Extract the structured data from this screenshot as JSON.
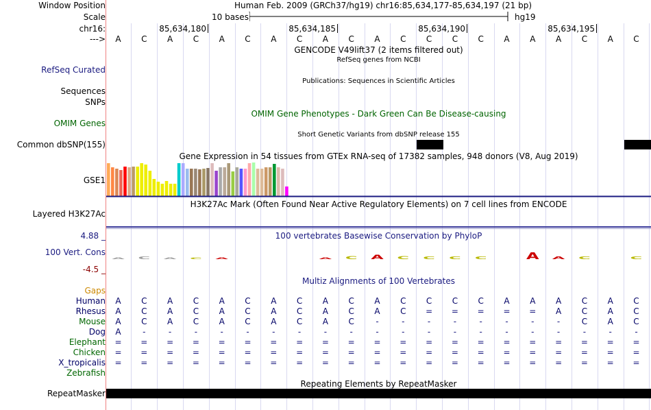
{
  "labels": {
    "window_position": "Window Position",
    "scale": "Scale",
    "chrom": "chr16:",
    "arrow": "--->",
    "refseq": "RefSeq Curated",
    "sequences": "Sequences",
    "snps": "SNPs",
    "omim": "OMIM Genes",
    "dbsnp": "Common dbSNP(155)",
    "gse1": "GSE1",
    "h3k27ac": "Layered H3K27Ac",
    "vert_cons": "100 Vert. Cons",
    "cons_max": "4.88 _",
    "cons_min": "-4.5 _",
    "gaps": "Gaps",
    "repeatmasker": "RepeatMasker"
  },
  "ruler": {
    "window_text": "Human Feb. 2009 (GRCh37/hg19)   chr16:85,634,177-85,634,197 (21 bp)",
    "scale_text": "10 bases",
    "assembly": "hg19",
    "positions": [
      "85,634,180",
      "85,634,185",
      "85,634,190",
      "85,634,195"
    ]
  },
  "reference_bases": [
    "A",
    "C",
    "A",
    "C",
    "A",
    "C",
    "A",
    "C",
    "A",
    "C",
    "A",
    "C",
    "C",
    "C",
    "C",
    "A",
    "A",
    "A",
    "C",
    "A",
    "C"
  ],
  "tracks": {
    "gencode": "GENCODE V49lift37 (2 items filtered out)",
    "refseq": "RefSeq genes from NCBI",
    "publications": "Publications: Sequences in Scientific Articles",
    "omim": "OMIM Gene Phenotypes - Dark Green Can Be Disease-causing",
    "dbsnp": "Short Genetic Variants from dbSNP release 155",
    "gtex": "Gene Expression in 54 tissues from GTEx RNA-seq of 17382 samples, 948 donors (V8, Aug 2019)",
    "h3k27ac": "H3K27Ac Mark (Often Found Near Active Regulatory Elements) on 7 cell lines from ENCODE",
    "phylop": "100 vertebrates Basewise Conservation by PhyloP",
    "multiz": "Multiz Alignments of 100 Vertebrates",
    "rmsk": "Repeating Elements by RepeatMasker"
  },
  "gtex_bars": [
    {
      "h": 0.96,
      "c": "#ffaa55"
    },
    {
      "h": 0.84,
      "c": "#ff8844"
    },
    {
      "h": 0.8,
      "c": "#dd8855"
    },
    {
      "h": 0.76,
      "c": "#ee6655"
    },
    {
      "h": 0.86,
      "c": "#ff0000"
    },
    {
      "h": 0.84,
      "c": "#ddaa88"
    },
    {
      "h": 0.86,
      "c": "#bb9966"
    },
    {
      "h": 0.86,
      "c": "#eeee00"
    },
    {
      "h": 0.96,
      "c": "#eeee00"
    },
    {
      "h": 0.92,
      "c": "#eeee00"
    },
    {
      "h": 0.74,
      "c": "#eeee00"
    },
    {
      "h": 0.5,
      "c": "#eeee00"
    },
    {
      "h": 0.42,
      "c": "#eeee00"
    },
    {
      "h": 0.36,
      "c": "#eeee00"
    },
    {
      "h": 0.44,
      "c": "#eeee00"
    },
    {
      "h": 0.36,
      "c": "#eeee00"
    },
    {
      "h": 0.36,
      "c": "#eeee00"
    },
    {
      "h": 0.96,
      "c": "#00cccc"
    },
    {
      "h": 0.96,
      "c": "#aaaaff"
    },
    {
      "h": 0.8,
      "c": "#99bbee"
    },
    {
      "h": 0.8,
      "c": "#997755"
    },
    {
      "h": 0.8,
      "c": "#998877"
    },
    {
      "h": 0.78,
      "c": "#997755"
    },
    {
      "h": 0.8,
      "c": "#aa9966"
    },
    {
      "h": 0.82,
      "c": "#887766"
    },
    {
      "h": 0.96,
      "c": "#ddbbbb"
    },
    {
      "h": 0.74,
      "c": "#9944cc"
    },
    {
      "h": 0.84,
      "c": "#aaaaaa"
    },
    {
      "h": 0.84,
      "c": "#bbaa99"
    },
    {
      "h": 0.96,
      "c": "#aa9977"
    },
    {
      "h": 0.72,
      "c": "#99cc44"
    },
    {
      "h": 0.84,
      "c": "#aaaa99"
    },
    {
      "h": 0.8,
      "c": "#5555ff"
    },
    {
      "h": 0.8,
      "c": "#ff99cc"
    },
    {
      "h": 0.96,
      "c": "#ffaaaa"
    },
    {
      "h": 0.98,
      "c": "#aaffaa"
    },
    {
      "h": 0.8,
      "c": "#ddbb99"
    },
    {
      "h": 0.8,
      "c": "#ddbb99"
    },
    {
      "h": 0.84,
      "c": "#cc9966"
    },
    {
      "h": 0.84,
      "c": "#bb9966"
    },
    {
      "h": 0.94,
      "c": "#009933"
    },
    {
      "h": 0.84,
      "c": "#ddbbaa"
    },
    {
      "h": 0.8,
      "c": "#ddbbbb"
    },
    {
      "h": 0.28,
      "c": "#ff00ff"
    }
  ],
  "alignment": [
    {
      "species": "Human",
      "color": "#000066",
      "bases": [
        "A",
        "C",
        "A",
        "C",
        "A",
        "C",
        "A",
        "C",
        "A",
        "C",
        "A",
        "C",
        "C",
        "C",
        "C",
        "A",
        "A",
        "A",
        "C",
        "A",
        "C"
      ]
    },
    {
      "species": "Rhesus",
      "color": "#000066",
      "bases": [
        "A",
        "C",
        "A",
        "C",
        "A",
        "C",
        "A",
        "C",
        "A",
        "C",
        "A",
        "C",
        "=",
        "=",
        "=",
        "=",
        "=",
        "A",
        "C",
        "A",
        "C"
      ]
    },
    {
      "species": "Mouse",
      "color": "#006600",
      "bases": [
        "A",
        "C",
        "A",
        "C",
        "A",
        "C",
        "A",
        "C",
        "A",
        "C",
        "-",
        "-",
        "-",
        "-",
        "-",
        "-",
        "-",
        "-",
        "C",
        "A",
        "C"
      ]
    },
    {
      "species": "Dog",
      "color": "#000066",
      "bases": [
        "A",
        "-",
        "-",
        "-",
        "-",
        "-",
        "-",
        "-",
        "-",
        "-",
        "-",
        "-",
        "-",
        "-",
        "-",
        "-",
        "-",
        "-",
        "-",
        "-",
        "-"
      ]
    },
    {
      "species": "Elephant",
      "color": "#006600",
      "bases": [
        "=",
        "=",
        "=",
        "=",
        "=",
        "=",
        "=",
        "=",
        "=",
        "=",
        "=",
        "=",
        "=",
        "=",
        "=",
        "=",
        "=",
        "=",
        "=",
        "=",
        "="
      ]
    },
    {
      "species": "Chicken",
      "color": "#006600",
      "bases": [
        "=",
        "=",
        "=",
        "=",
        "=",
        "=",
        "=",
        "=",
        "=",
        "=",
        "=",
        "=",
        "=",
        "=",
        "=",
        "=",
        "=",
        "=",
        "=",
        "=",
        "="
      ]
    },
    {
      "species": "X_tropicalis",
      "color": "#000066",
      "bases": [
        "=",
        "=",
        "=",
        "=",
        "=",
        "=",
        "=",
        "=",
        "=",
        "=",
        "=",
        "=",
        "=",
        "=",
        "=",
        "=",
        "=",
        "=",
        "=",
        "=",
        "="
      ]
    },
    {
      "species": "Zebrafish",
      "color": "#006600",
      "bases": [
        "",
        "",
        "",
        "",
        "",
        "",
        "",
        "",
        "",
        "",
        "",
        "",
        "",
        "",
        "",
        "",
        "",
        "",
        "",
        "",
        ""
      ]
    }
  ],
  "colors": {
    "ucsc_blue": "#1a1a80",
    "omim_green": "#006400",
    "gaps_orange": "#cc8800",
    "grid_line": "#d8d8f0",
    "divider": "#f08080"
  }
}
